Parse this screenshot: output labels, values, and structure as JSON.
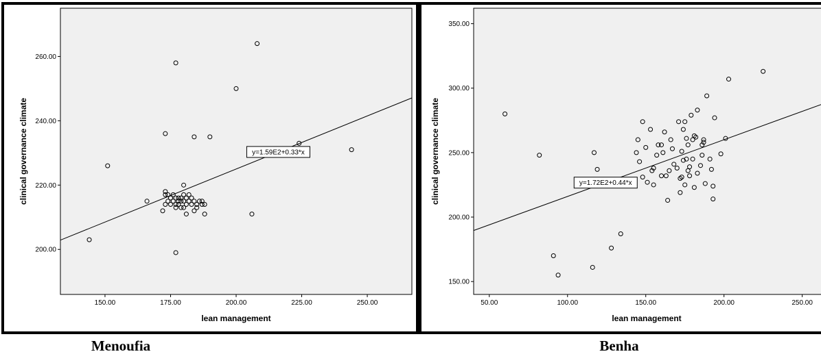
{
  "chart_data": [
    {
      "type": "scatter",
      "caption": "Menoufia",
      "xlabel": "lean management",
      "ylabel": "clinical governance climate",
      "xlim": [
        133,
        267
      ],
      "ylim": [
        186,
        275
      ],
      "xticks": [
        "150.00",
        "175.00",
        "200.00",
        "225.00",
        "250.00"
      ],
      "yticks": [
        "200.00",
        "220.00",
        "240.00",
        "260.00"
      ],
      "fit_label": "y=1.59E2+0.33*x",
      "fit": {
        "intercept": 159,
        "slope": 0.33
      },
      "points": [
        [
          144,
          203
        ],
        [
          151,
          226
        ],
        [
          166,
          215
        ],
        [
          172,
          212
        ],
        [
          173,
          214
        ],
        [
          173,
          217
        ],
        [
          173,
          218
        ],
        [
          173,
          236
        ],
        [
          174,
          215
        ],
        [
          174,
          217
        ],
        [
          175,
          214
        ],
        [
          175,
          216
        ],
        [
          176,
          215
        ],
        [
          176,
          217
        ],
        [
          177,
          213
        ],
        [
          177,
          214
        ],
        [
          177,
          216
        ],
        [
          177,
          258
        ],
        [
          178,
          215
        ],
        [
          178,
          216
        ],
        [
          178,
          214
        ],
        [
          179,
          213
        ],
        [
          179,
          215
        ],
        [
          179,
          216
        ],
        [
          180,
          213
        ],
        [
          180,
          215
        ],
        [
          180,
          217
        ],
        [
          180,
          220
        ],
        [
          181,
          211
        ],
        [
          181,
          214
        ],
        [
          181,
          216
        ],
        [
          182,
          215
        ],
        [
          182,
          217
        ],
        [
          183,
          214
        ],
        [
          183,
          216
        ],
        [
          184,
          212
        ],
        [
          184,
          215
        ],
        [
          184,
          235
        ],
        [
          185,
          213
        ],
        [
          185,
          214
        ],
        [
          186,
          215
        ],
        [
          187,
          214
        ],
        [
          187,
          215
        ],
        [
          188,
          211
        ],
        [
          188,
          214
        ],
        [
          190,
          235
        ],
        [
          177,
          199
        ],
        [
          200,
          250
        ],
        [
          206,
          211
        ],
        [
          208,
          264
        ],
        [
          224,
          233
        ],
        [
          244,
          231
        ]
      ]
    },
    {
      "type": "scatter",
      "caption": "Benha",
      "xlabel": "lean management",
      "ylabel": "clinical governance climate",
      "xlim": [
        40,
        262
      ],
      "ylim": [
        140,
        362
      ],
      "xticks": [
        "50.00",
        "100.00",
        "150.00",
        "200.00",
        "250.00"
      ],
      "yticks": [
        "150.00",
        "200.00",
        "250.00",
        "300.00",
        "350.00"
      ],
      "fit_label": "y=1.72E2+0.44*x",
      "fit": {
        "intercept": 172,
        "slope": 0.44
      },
      "points": [
        [
          60,
          280
        ],
        [
          82,
          248
        ],
        [
          91,
          170
        ],
        [
          94,
          155
        ],
        [
          116,
          161
        ],
        [
          117,
          250
        ],
        [
          119,
          237
        ],
        [
          125,
          226
        ],
        [
          128,
          176
        ],
        [
          134,
          187
        ],
        [
          140,
          227
        ],
        [
          144,
          250
        ],
        [
          145,
          260
        ],
        [
          146,
          243
        ],
        [
          148,
          231
        ],
        [
          148,
          274
        ],
        [
          150,
          254
        ],
        [
          151,
          227
        ],
        [
          153,
          268
        ],
        [
          154,
          236
        ],
        [
          155,
          238
        ],
        [
          155,
          225
        ],
        [
          157,
          248
        ],
        [
          158,
          256
        ],
        [
          160,
          232
        ],
        [
          160,
          256
        ],
        [
          161,
          250
        ],
        [
          162,
          266
        ],
        [
          163,
          232
        ],
        [
          164,
          213
        ],
        [
          165,
          236
        ],
        [
          166,
          260
        ],
        [
          167,
          253
        ],
        [
          168,
          241
        ],
        [
          170,
          238
        ],
        [
          171,
          274
        ],
        [
          172,
          230
        ],
        [
          172,
          219
        ],
        [
          173,
          231
        ],
        [
          173,
          251
        ],
        [
          174,
          268
        ],
        [
          174,
          244
        ],
        [
          175,
          225
        ],
        [
          175,
          274
        ],
        [
          176,
          245
        ],
        [
          176,
          261
        ],
        [
          177,
          256
        ],
        [
          177,
          236
        ],
        [
          178,
          239
        ],
        [
          178,
          232
        ],
        [
          179,
          279
        ],
        [
          180,
          245
        ],
        [
          180,
          260
        ],
        [
          181,
          223
        ],
        [
          181,
          263
        ],
        [
          182,
          262
        ],
        [
          183,
          283
        ],
        [
          183,
          234
        ],
        [
          185,
          240
        ],
        [
          186,
          248
        ],
        [
          186,
          256
        ],
        [
          187,
          258
        ],
        [
          187,
          260
        ],
        [
          188,
          226
        ],
        [
          189,
          294
        ],
        [
          191,
          245
        ],
        [
          192,
          237
        ],
        [
          193,
          214
        ],
        [
          193,
          224
        ],
        [
          194,
          277
        ],
        [
          198,
          249
        ],
        [
          201,
          261
        ],
        [
          203,
          307
        ],
        [
          225,
          313
        ]
      ]
    }
  ]
}
